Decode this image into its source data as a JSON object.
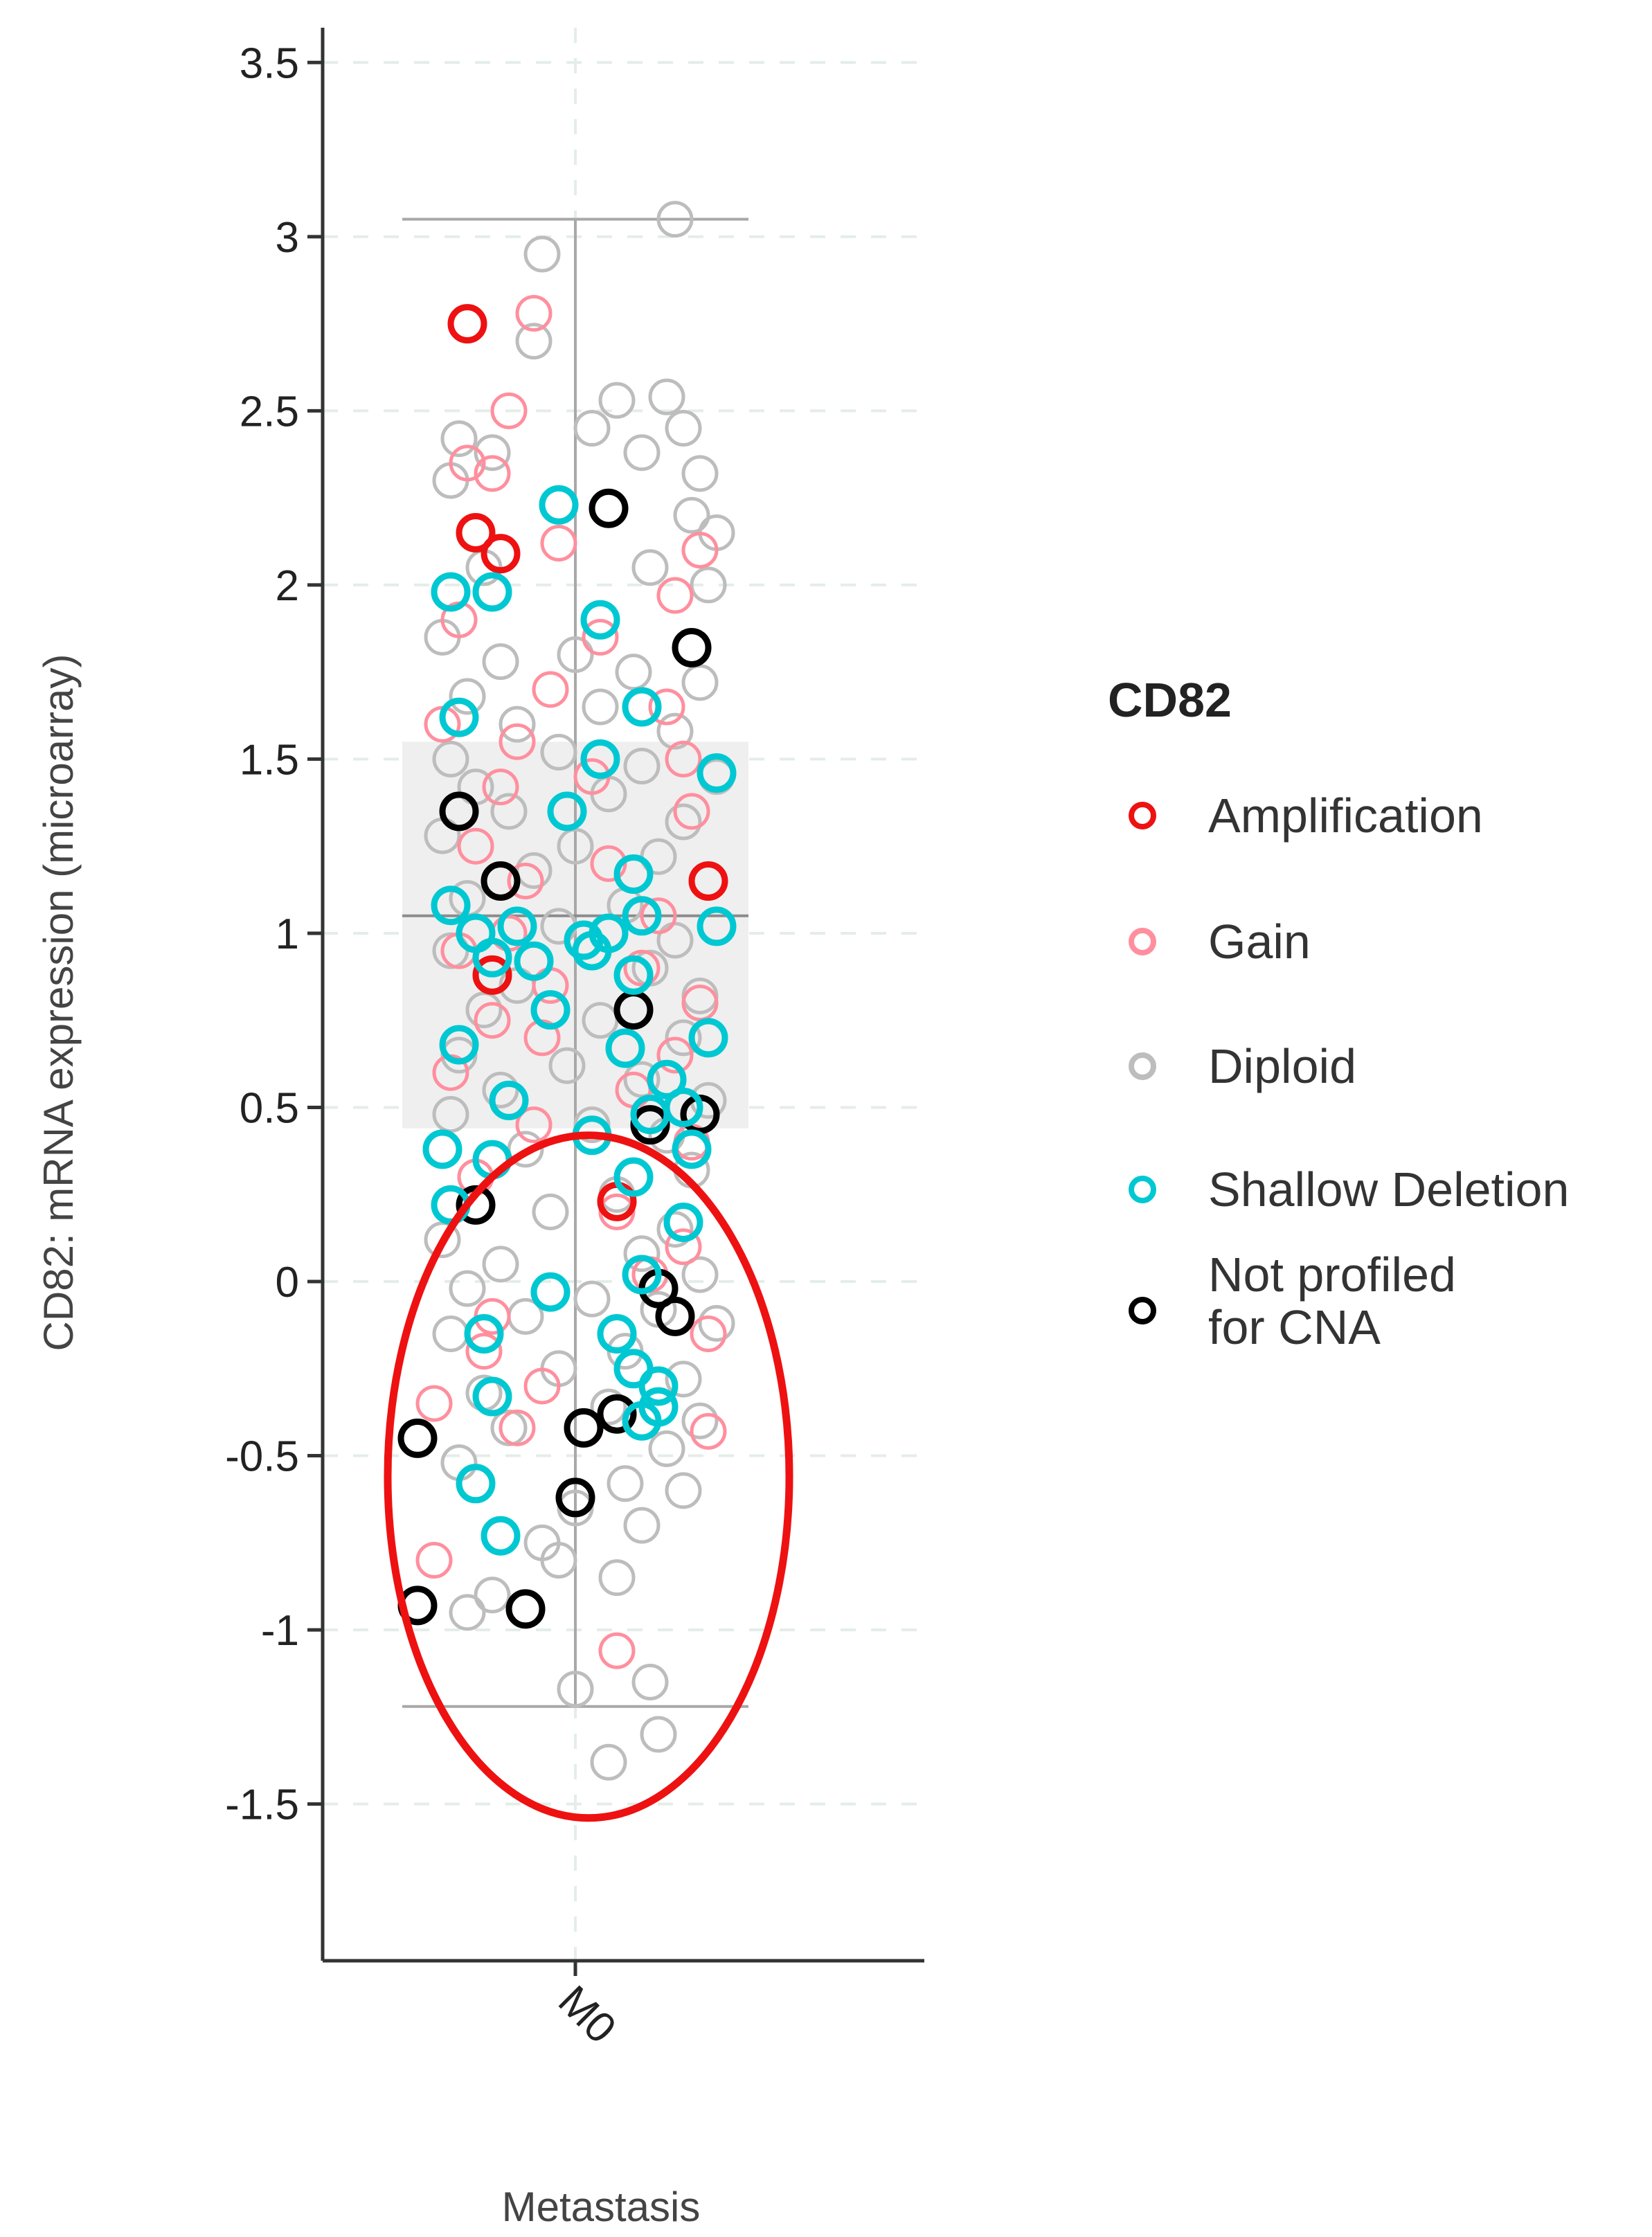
{
  "chart_data": {
    "type": "scatter",
    "subtype": "box-plot-with-jittered-points",
    "xlabel": "Metastasis",
    "ylabel": "CD82: mRNA expression (microarray)",
    "categories": [
      "M0"
    ],
    "ylim": [
      -1.95,
      3.6
    ],
    "yticks": [
      3.5,
      3,
      2.5,
      2,
      1.5,
      1,
      0.5,
      0,
      -0.5,
      -1,
      -1.5
    ],
    "ytick_labels": [
      "3.5",
      "3",
      "2.5",
      "2",
      "1.5",
      "1",
      "0.5",
      "0",
      "-0.5",
      "-1",
      "-1.5"
    ],
    "grid": true,
    "box": {
      "category": "M0",
      "whisker_low": -1.22,
      "q1": 0.44,
      "median": 1.05,
      "q3": 1.55,
      "whisker_high": 3.05
    },
    "annotation": {
      "type": "ellipse",
      "color": "#ee1111",
      "y_center": -0.56,
      "y_range": [
        -1.54,
        0.42
      ],
      "description": "red ellipse highlighting low-expression samples"
    },
    "legend": {
      "title": "CD82",
      "position": "right",
      "entries": [
        {
          "name": "Amplification",
          "color": "#ee1111"
        },
        {
          "name": "Gain",
          "color": "#ff8f9e"
        },
        {
          "name": "Diploid",
          "color": "#bdbdbd"
        },
        {
          "name": "Shallow Deletion",
          "color": "#00c8d2"
        },
        {
          "name": "Not profiled",
          "name_line2": "for CNA",
          "color": "#000000"
        }
      ]
    },
    "series": [
      {
        "name": "Diploid",
        "color": "#bdbdbd",
        "points": [
          [
            0.12,
            3.05
          ],
          [
            -0.04,
            2.95
          ],
          [
            -0.05,
            2.7
          ],
          [
            0.02,
            2.45
          ],
          [
            0.05,
            2.53
          ],
          [
            0.11,
            2.54
          ],
          [
            0.13,
            2.45
          ],
          [
            0.15,
            2.32
          ],
          [
            -0.14,
            2.42
          ],
          [
            -0.1,
            2.38
          ],
          [
            0.08,
            2.38
          ],
          [
            0.14,
            2.2
          ],
          [
            0.17,
            2.15
          ],
          [
            0.09,
            2.05
          ],
          [
            0.16,
            2.0
          ],
          [
            -0.15,
            2.3
          ],
          [
            -0.11,
            2.05
          ],
          [
            -0.16,
            1.85
          ],
          [
            -0.09,
            1.78
          ],
          [
            0.0,
            1.8
          ],
          [
            0.07,
            1.75
          ],
          [
            0.15,
            1.72
          ],
          [
            -0.13,
            1.68
          ],
          [
            0.03,
            1.65
          ],
          [
            -0.07,
            1.6
          ],
          [
            0.12,
            1.58
          ],
          [
            -0.15,
            1.5
          ],
          [
            -0.02,
            1.52
          ],
          [
            0.08,
            1.48
          ],
          [
            0.17,
            1.45
          ],
          [
            -0.12,
            1.42
          ],
          [
            0.04,
            1.4
          ],
          [
            -0.08,
            1.35
          ],
          [
            0.13,
            1.32
          ],
          [
            -0.16,
            1.28
          ],
          [
            0.0,
            1.25
          ],
          [
            0.1,
            1.22
          ],
          [
            -0.05,
            1.18
          ],
          [
            0.16,
            1.15
          ],
          [
            -0.13,
            1.1
          ],
          [
            0.06,
            1.08
          ],
          [
            -0.02,
            1.02
          ],
          [
            0.12,
            0.98
          ],
          [
            -0.15,
            0.95
          ],
          [
            0.09,
            0.9
          ],
          [
            -0.07,
            0.85
          ],
          [
            0.15,
            0.82
          ],
          [
            -0.11,
            0.78
          ],
          [
            0.03,
            0.75
          ],
          [
            0.13,
            0.7
          ],
          [
            -0.14,
            0.65
          ],
          [
            -0.01,
            0.62
          ],
          [
            0.08,
            0.58
          ],
          [
            -0.09,
            0.55
          ],
          [
            0.16,
            0.52
          ],
          [
            -0.15,
            0.48
          ],
          [
            0.02,
            0.45
          ],
          [
            0.11,
            0.42
          ],
          [
            -0.06,
            0.38
          ],
          [
            0.14,
            0.32
          ],
          [
            -0.12,
            0.3
          ],
          [
            0.05,
            0.25
          ],
          [
            -0.03,
            0.2
          ],
          [
            0.12,
            0.15
          ],
          [
            -0.16,
            0.12
          ],
          [
            0.08,
            0.08
          ],
          [
            -0.09,
            0.05
          ],
          [
            0.15,
            0.02
          ],
          [
            -0.13,
            -0.02
          ],
          [
            0.02,
            -0.05
          ],
          [
            0.1,
            -0.08
          ],
          [
            -0.06,
            -0.1
          ],
          [
            0.17,
            -0.12
          ],
          [
            -0.15,
            -0.15
          ],
          [
            0.06,
            -0.2
          ],
          [
            -0.02,
            -0.25
          ],
          [
            0.13,
            -0.28
          ],
          [
            -0.11,
            -0.32
          ],
          [
            0.04,
            -0.36
          ],
          [
            0.15,
            -0.4
          ],
          [
            -0.08,
            -0.42
          ],
          [
            0.11,
            -0.48
          ],
          [
            -0.14,
            -0.52
          ],
          [
            0.06,
            -0.58
          ],
          [
            0.0,
            -0.65
          ],
          [
            0.08,
            -0.7
          ],
          [
            -0.04,
            -0.75
          ],
          [
            -0.02,
            -0.8
          ],
          [
            0.05,
            -0.85
          ],
          [
            -0.13,
            -0.95
          ],
          [
            0.0,
            -1.17
          ],
          [
            0.09,
            -1.15
          ],
          [
            0.1,
            -1.3
          ],
          [
            0.04,
            -1.38
          ],
          [
            -0.1,
            -0.9
          ],
          [
            0.13,
            -0.6
          ]
        ]
      },
      {
        "name": "Gain",
        "color": "#ff8f9e",
        "points": [
          [
            -0.05,
            2.78
          ],
          [
            -0.08,
            2.5
          ],
          [
            -0.13,
            2.35
          ],
          [
            -0.1,
            2.32
          ],
          [
            -0.02,
            2.12
          ],
          [
            0.15,
            2.1
          ],
          [
            0.12,
            1.97
          ],
          [
            -0.14,
            1.9
          ],
          [
            0.03,
            1.85
          ],
          [
            -0.03,
            1.7
          ],
          [
            0.11,
            1.65
          ],
          [
            -0.16,
            1.6
          ],
          [
            -0.07,
            1.55
          ],
          [
            0.13,
            1.5
          ],
          [
            -0.09,
            1.42
          ],
          [
            0.14,
            1.35
          ],
          [
            -0.12,
            1.25
          ],
          [
            0.04,
            1.2
          ],
          [
            -0.06,
            1.15
          ],
          [
            0.1,
            1.05
          ],
          [
            -0.14,
            0.95
          ],
          [
            0.08,
            0.9
          ],
          [
            -0.03,
            0.85
          ],
          [
            0.15,
            0.8
          ],
          [
            -0.1,
            0.75
          ],
          [
            -0.04,
            0.7
          ],
          [
            0.12,
            0.65
          ],
          [
            -0.15,
            0.6
          ],
          [
            0.07,
            0.55
          ],
          [
            -0.05,
            0.45
          ],
          [
            0.14,
            0.4
          ],
          [
            -0.12,
            0.3
          ],
          [
            0.05,
            0.2
          ],
          [
            0.13,
            0.1
          ],
          [
            0.09,
            0.02
          ],
          [
            -0.11,
            -0.2
          ],
          [
            0.16,
            -0.15
          ],
          [
            -0.04,
            -0.3
          ],
          [
            -0.17,
            -0.35
          ],
          [
            0.16,
            -0.43
          ],
          [
            -0.07,
            -0.42
          ],
          [
            -0.17,
            -0.8
          ],
          [
            0.05,
            -1.06
          ],
          [
            -0.1,
            -0.1
          ],
          [
            0.02,
            1.45
          ],
          [
            -0.08,
            1.0
          ]
        ]
      },
      {
        "name": "Not profiled for CNA",
        "color": "#000000",
        "points": [
          [
            0.04,
            2.22
          ],
          [
            0.14,
            1.82
          ],
          [
            -0.14,
            1.35
          ],
          [
            -0.09,
            1.15
          ],
          [
            0.07,
            0.78
          ],
          [
            0.09,
            0.45
          ],
          [
            0.15,
            0.48
          ],
          [
            -0.12,
            0.22
          ],
          [
            0.1,
            -0.02
          ],
          [
            -0.19,
            -0.45
          ],
          [
            0.01,
            -0.42
          ],
          [
            0.05,
            -0.38
          ],
          [
            0.0,
            -0.62
          ],
          [
            -0.19,
            -0.93
          ],
          [
            -0.06,
            -0.94
          ],
          [
            0.12,
            -0.1
          ]
        ]
      },
      {
        "name": "Amplification",
        "color": "#ee1111",
        "points": [
          [
            -0.13,
            2.75
          ],
          [
            -0.12,
            2.15
          ],
          [
            -0.09,
            2.09
          ],
          [
            0.16,
            1.15
          ],
          [
            -0.1,
            0.88
          ],
          [
            0.05,
            0.23
          ]
        ]
      },
      {
        "name": "Shallow Deletion",
        "color": "#00c8d2",
        "points": [
          [
            -0.02,
            2.23
          ],
          [
            -0.15,
            1.98
          ],
          [
            -0.1,
            1.98
          ],
          [
            0.03,
            1.9
          ],
          [
            0.08,
            1.65
          ],
          [
            -0.14,
            1.62
          ],
          [
            0.03,
            1.5
          ],
          [
            0.17,
            1.46
          ],
          [
            -0.01,
            1.35
          ],
          [
            0.07,
            1.17
          ],
          [
            0.08,
            1.05
          ],
          [
            -0.15,
            1.08
          ],
          [
            -0.12,
            1.0
          ],
          [
            -0.07,
            1.02
          ],
          [
            0.01,
            0.98
          ],
          [
            0.04,
            1.0
          ],
          [
            0.17,
            1.02
          ],
          [
            -0.1,
            0.93
          ],
          [
            -0.05,
            0.92
          ],
          [
            0.02,
            0.95
          ],
          [
            0.07,
            0.88
          ],
          [
            -0.03,
            0.78
          ],
          [
            0.06,
            0.67
          ],
          [
            0.16,
            0.7
          ],
          [
            -0.14,
            0.68
          ],
          [
            0.11,
            0.58
          ],
          [
            -0.08,
            0.52
          ],
          [
            0.13,
            0.5
          ],
          [
            0.09,
            0.48
          ],
          [
            -0.16,
            0.38
          ],
          [
            -0.1,
            0.35
          ],
          [
            0.02,
            0.42
          ],
          [
            0.14,
            0.38
          ],
          [
            0.07,
            0.3
          ],
          [
            -0.15,
            0.22
          ],
          [
            0.13,
            0.17
          ],
          [
            0.08,
            0.02
          ],
          [
            -0.03,
            -0.03
          ],
          [
            0.05,
            -0.15
          ],
          [
            -0.11,
            -0.15
          ],
          [
            0.07,
            -0.25
          ],
          [
            0.1,
            -0.3
          ],
          [
            -0.1,
            -0.33
          ],
          [
            0.1,
            -0.36
          ],
          [
            0.08,
            -0.4
          ],
          [
            -0.12,
            -0.58
          ],
          [
            -0.09,
            -0.73
          ]
        ]
      }
    ]
  }
}
